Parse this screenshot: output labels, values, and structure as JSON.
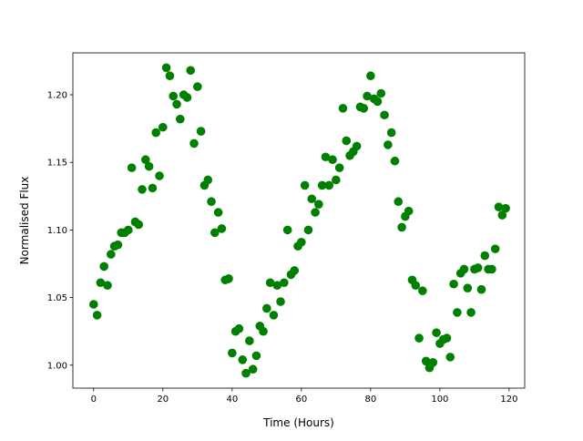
{
  "chart_data": {
    "type": "scatter",
    "title": "",
    "xlabel": "Time (Hours)",
    "ylabel": "Normalised Flux",
    "xlim": [
      -6,
      124.5
    ],
    "ylim": [
      0.983,
      1.231
    ],
    "xticks": [
      0,
      20,
      40,
      60,
      80,
      100,
      120
    ],
    "xtick_labels": [
      "0",
      "20",
      "40",
      "60",
      "80",
      "100",
      "120"
    ],
    "yticks": [
      1.0,
      1.05,
      1.1,
      1.15,
      1.2
    ],
    "ytick_labels": [
      "1.00",
      "1.05",
      "1.10",
      "1.15",
      "1.20"
    ],
    "grid": false,
    "marker_color": "#008000",
    "series": [
      {
        "x": [
          0,
          1,
          2,
          3,
          4,
          5,
          6,
          7,
          8,
          9,
          10,
          11,
          12,
          13,
          14,
          15,
          16,
          17,
          18,
          19,
          20,
          21,
          22,
          23,
          24,
          25,
          26,
          27,
          28,
          29,
          30,
          31,
          32,
          33,
          34,
          35,
          36,
          37,
          38,
          39,
          40,
          41,
          42,
          43,
          44,
          45,
          46,
          47,
          48,
          49,
          50,
          51,
          52,
          53,
          54,
          55,
          56,
          57,
          58,
          59,
          60,
          61,
          62,
          63,
          64,
          65,
          66,
          67,
          68,
          69,
          70,
          71,
          72,
          73,
          74,
          75,
          76,
          77,
          78,
          79,
          80,
          81,
          82,
          83,
          84,
          85,
          86,
          87,
          88,
          89,
          90,
          91,
          92,
          93,
          94,
          95,
          96,
          97,
          98,
          99,
          100,
          101,
          102,
          103,
          104,
          105,
          106,
          107,
          108,
          109,
          110,
          111,
          112,
          113,
          114,
          115,
          116,
          117,
          118,
          119
        ],
        "y": [
          1.045,
          1.037,
          1.061,
          1.073,
          1.059,
          1.082,
          1.088,
          1.089,
          1.098,
          1.098,
          1.1,
          1.146,
          1.106,
          1.104,
          1.13,
          1.152,
          1.147,
          1.131,
          1.172,
          1.14,
          1.176,
          1.22,
          1.214,
          1.199,
          1.193,
          1.182,
          1.2,
          1.198,
          1.218,
          1.164,
          1.206,
          1.173,
          1.133,
          1.137,
          1.121,
          1.098,
          1.113,
          1.101,
          1.063,
          1.064,
          1.009,
          1.025,
          1.027,
          1.004,
          0.994,
          1.018,
          0.997,
          1.007,
          1.029,
          1.025,
          1.042,
          1.061,
          1.037,
          1.059,
          1.047,
          1.061,
          1.1,
          1.067,
          1.07,
          1.088,
          1.091,
          1.133,
          1.1,
          1.123,
          1.113,
          1.119,
          1.133,
          1.154,
          1.133,
          1.152,
          1.137,
          1.146,
          1.19,
          1.166,
          1.155,
          1.158,
          1.162,
          1.191,
          1.19,
          1.199,
          1.214,
          1.197,
          1.195,
          1.201,
          1.185,
          1.163,
          1.172,
          1.151,
          1.121,
          1.102,
          1.11,
          1.114,
          1.063,
          1.059,
          1.02,
          1.055,
          1.003,
          0.998,
          1.002,
          1.024,
          1.016,
          1.019,
          1.02,
          1.006,
          1.06,
          1.039,
          1.068,
          1.071,
          1.057,
          1.039,
          1.071,
          1.072,
          1.056,
          1.081,
          1.071,
          1.071,
          1.086,
          1.117,
          1.111,
          1.116
        ]
      }
    ]
  }
}
